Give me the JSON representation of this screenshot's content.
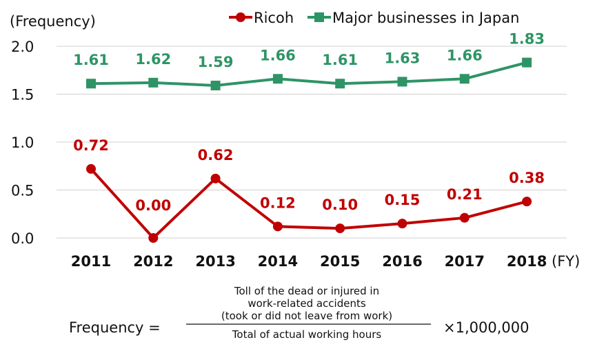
{
  "chart_data": {
    "type": "line",
    "ylabel": "(Frequency)",
    "xlabel_unit": "(FY)",
    "x": [
      "2011",
      "2012",
      "2013",
      "2014",
      "2015",
      "2016",
      "2017",
      "2018"
    ],
    "ylim": [
      0,
      2.0
    ],
    "yticks": [
      "0.0",
      "0.5",
      "1.0",
      "1.5",
      "2.0"
    ],
    "ytick_values": [
      0,
      0.5,
      1.0,
      1.5,
      2.0
    ],
    "grid": true,
    "legend_placement": "top-right",
    "series": [
      {
        "name": "Ricoh",
        "color": "#c00000",
        "marker": "circle",
        "values": [
          0.72,
          0.0,
          0.62,
          0.12,
          0.1,
          0.15,
          0.21,
          0.38
        ],
        "labels": [
          "0.72",
          "0.00",
          "0.62",
          "0.12",
          "0.10",
          "0.15",
          "0.21",
          "0.38"
        ]
      },
      {
        "name": "Major businesses in Japan",
        "color": "#2e9466",
        "marker": "square",
        "values": [
          1.61,
          1.62,
          1.59,
          1.66,
          1.61,
          1.63,
          1.66,
          1.83
        ],
        "labels": [
          "1.61",
          "1.62",
          "1.59",
          "1.66",
          "1.61",
          "1.63",
          "1.66",
          "1.83"
        ]
      }
    ]
  },
  "formula": {
    "lhs": "Frequency =",
    "numerator": [
      "Toll of the dead or injured in",
      "work-related accidents",
      "(took or did not leave from work)"
    ],
    "denominator": "Total of actual working hours",
    "multiplier": "×1,000,000"
  }
}
